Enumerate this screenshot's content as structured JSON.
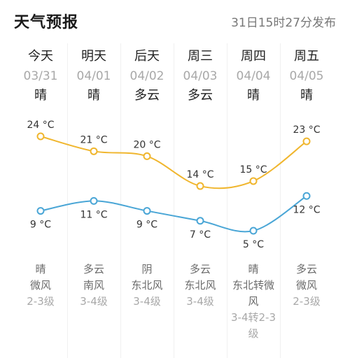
{
  "header": {
    "title": "天气预报",
    "publish_time": "31日15时27分发布"
  },
  "colors": {
    "high_line": "#f0b62e",
    "low_line": "#4aa6d6",
    "separator": "#f0f0f0"
  },
  "days": [
    {
      "name": "今天",
      "date": "03/31",
      "condition": "晴",
      "high": 24,
      "low": 9,
      "high_label": "24 °C",
      "low_label": "9 °C",
      "night_condition": "晴",
      "wind_dir": "微风",
      "wind_level": "2-3级"
    },
    {
      "name": "明天",
      "date": "04/01",
      "condition": "晴",
      "high": 21,
      "low": 11,
      "high_label": "21 °C",
      "low_label": "11 °C",
      "night_condition": "多云",
      "wind_dir": "南风",
      "wind_level": "3-4级"
    },
    {
      "name": "后天",
      "date": "04/02",
      "condition": "多云",
      "high": 20,
      "low": 9,
      "high_label": "20 °C",
      "low_label": "9 °C",
      "night_condition": "阴",
      "wind_dir": "东北风",
      "wind_level": "3-4级"
    },
    {
      "name": "周三",
      "date": "04/03",
      "condition": "多云",
      "high": 14,
      "low": 7,
      "high_label": "14 °C",
      "low_label": "7 °C",
      "night_condition": "多云",
      "wind_dir": "东北风",
      "wind_level": "3-4级"
    },
    {
      "name": "周四",
      "date": "04/04",
      "condition": "晴",
      "high": 15,
      "low": 5,
      "high_label": "15 °C",
      "low_label": "5 °C",
      "night_condition": "晴",
      "wind_dir_1": "东北转微",
      "wind_dir_2": "风",
      "wind_level_1": "3-4转2-3",
      "wind_level_2": "级"
    },
    {
      "name": "周五",
      "date": "04/05",
      "condition": "晴",
      "high": 23,
      "low": 12,
      "high_label": "23 °C",
      "low_label": "12 °C",
      "night_condition": "多云",
      "wind_dir": "微风",
      "wind_level": "2-3级"
    }
  ]
}
